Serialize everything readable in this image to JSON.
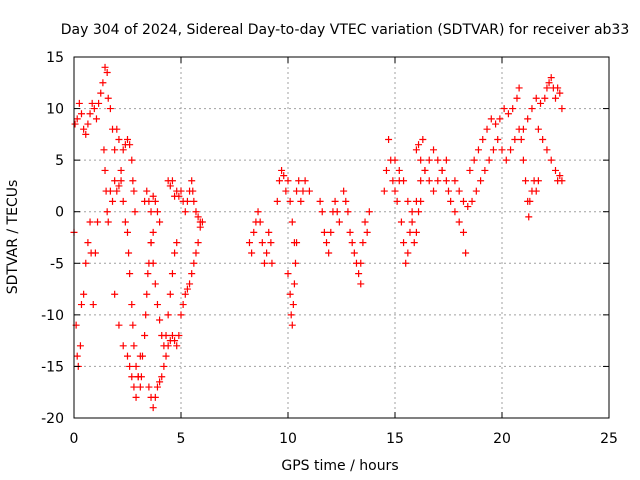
{
  "chart_data": {
    "type": "scatter",
    "title": "Day 304 of 2024, Sidereal Day-to-day VTEC variation (SDTVAR) for receiver ab33",
    "xlabel": "GPS time / hours",
    "ylabel": "SDTVAR / TECUs",
    "xlim": [
      0,
      25
    ],
    "ylim": [
      -20,
      15
    ],
    "xticks": [
      "0",
      "5",
      "10",
      "15",
      "20",
      "25"
    ],
    "yticks": [
      "15",
      "10",
      "5",
      "0",
      "-5",
      "-10",
      "-15",
      "-20"
    ],
    "grid": true,
    "marker": "+",
    "series": [
      {
        "name": "SDTVAR",
        "color": "#ff0000",
        "points": [
          [
            0.0,
            -2
          ],
          [
            0.1,
            -11
          ],
          [
            0.15,
            -14
          ],
          [
            0.2,
            -15
          ],
          [
            0.3,
            -13
          ],
          [
            0.35,
            -9
          ],
          [
            0.45,
            -8
          ],
          [
            0.55,
            -5
          ],
          [
            0.65,
            -3
          ],
          [
            0.75,
            -1
          ],
          [
            0.8,
            -4
          ],
          [
            0.9,
            -9
          ],
          [
            1.0,
            -4
          ],
          [
            1.1,
            -1
          ],
          [
            0.05,
            8.5
          ],
          [
            0.15,
            9
          ],
          [
            0.25,
            10.5
          ],
          [
            0.35,
            9.5
          ],
          [
            0.45,
            8
          ],
          [
            0.55,
            7.5
          ],
          [
            0.65,
            8.5
          ],
          [
            0.75,
            9.5
          ],
          [
            0.85,
            10.5
          ],
          [
            0.95,
            10
          ],
          [
            1.05,
            9
          ],
          [
            1.15,
            10.5
          ],
          [
            1.25,
            11.5
          ],
          [
            1.35,
            12.5
          ],
          [
            1.45,
            14
          ],
          [
            1.55,
            13.5
          ],
          [
            1.6,
            11
          ],
          [
            1.7,
            10
          ],
          [
            1.8,
            8
          ],
          [
            1.9,
            6
          ],
          [
            2.0,
            8
          ],
          [
            2.1,
            7
          ],
          [
            1.4,
            6
          ],
          [
            1.45,
            4
          ],
          [
            1.5,
            2
          ],
          [
            1.55,
            0
          ],
          [
            1.6,
            -1
          ],
          [
            1.7,
            2
          ],
          [
            1.8,
            1
          ],
          [
            1.9,
            3
          ],
          [
            2.0,
            2
          ],
          [
            2.1,
            2.5
          ],
          [
            2.2,
            4
          ],
          [
            2.3,
            6
          ],
          [
            2.4,
            6.5
          ],
          [
            2.5,
            7
          ],
          [
            2.6,
            6.5
          ],
          [
            2.7,
            5
          ],
          [
            2.75,
            3
          ],
          [
            2.8,
            2
          ],
          [
            2.85,
            0
          ],
          [
            2.2,
            3
          ],
          [
            2.3,
            1
          ],
          [
            2.4,
            -1
          ],
          [
            2.5,
            -2
          ],
          [
            2.55,
            -4
          ],
          [
            2.6,
            -6
          ],
          [
            2.7,
            -9
          ],
          [
            2.75,
            -11
          ],
          [
            2.8,
            -13
          ],
          [
            2.9,
            -15
          ],
          [
            3.0,
            -16
          ],
          [
            3.1,
            -17
          ],
          [
            3.15,
            -16
          ],
          [
            3.2,
            -14
          ],
          [
            3.3,
            -12
          ],
          [
            3.35,
            -10
          ],
          [
            3.4,
            -8
          ],
          [
            3.45,
            -6
          ],
          [
            3.5,
            -5
          ],
          [
            3.6,
            -3
          ],
          [
            3.7,
            -2
          ],
          [
            1.9,
            -8
          ],
          [
            2.1,
            -11
          ],
          [
            2.3,
            -13
          ],
          [
            2.5,
            -14
          ],
          [
            2.6,
            -15
          ],
          [
            2.7,
            -16
          ],
          [
            2.8,
            -17
          ],
          [
            2.9,
            -18
          ],
          [
            3.0,
            -16
          ],
          [
            3.1,
            -14
          ],
          [
            3.5,
            -17
          ],
          [
            3.6,
            -18
          ],
          [
            3.7,
            -19
          ],
          [
            3.8,
            -18
          ],
          [
            3.9,
            -17
          ],
          [
            4.0,
            -16.5
          ],
          [
            4.1,
            -16
          ],
          [
            4.2,
            -15
          ],
          [
            4.3,
            -14
          ],
          [
            4.4,
            -13
          ],
          [
            4.5,
            -12.5
          ],
          [
            4.6,
            -12
          ],
          [
            4.7,
            -12.5
          ],
          [
            4.8,
            -13
          ],
          [
            4.9,
            -12
          ],
          [
            5.0,
            -10
          ],
          [
            5.1,
            -9
          ],
          [
            5.2,
            -8
          ],
          [
            5.3,
            -7.5
          ],
          [
            5.4,
            -7
          ],
          [
            5.5,
            -6
          ],
          [
            5.6,
            -5
          ],
          [
            5.7,
            -4
          ],
          [
            5.8,
            -3
          ],
          [
            5.9,
            -1.5
          ],
          [
            6.0,
            -1
          ],
          [
            3.6,
            -3
          ],
          [
            3.7,
            -5
          ],
          [
            3.8,
            -7
          ],
          [
            3.9,
            -9
          ],
          [
            4.0,
            -10.5
          ],
          [
            4.1,
            -12
          ],
          [
            4.2,
            -13
          ],
          [
            4.3,
            -12
          ],
          [
            4.4,
            -10
          ],
          [
            4.5,
            -8
          ],
          [
            4.6,
            -6
          ],
          [
            4.7,
            -4
          ],
          [
            4.8,
            -3
          ],
          [
            3.3,
            1
          ],
          [
            3.4,
            2
          ],
          [
            3.5,
            1
          ],
          [
            3.6,
            0
          ],
          [
            3.7,
            1.5
          ],
          [
            3.8,
            1
          ],
          [
            3.9,
            0
          ],
          [
            4.0,
            -1
          ],
          [
            4.4,
            3
          ],
          [
            4.5,
            2.5
          ],
          [
            4.6,
            3
          ],
          [
            4.7,
            1.5
          ],
          [
            4.8,
            2
          ],
          [
            4.9,
            1.5
          ],
          [
            5.0,
            2
          ],
          [
            5.1,
            1
          ],
          [
            5.2,
            0
          ],
          [
            5.3,
            1
          ],
          [
            5.4,
            2
          ],
          [
            5.5,
            3
          ],
          [
            5.55,
            2
          ],
          [
            5.6,
            1
          ],
          [
            5.7,
            0
          ],
          [
            5.8,
            -0.5
          ],
          [
            5.9,
            -1
          ],
          [
            8.2,
            -3
          ],
          [
            8.3,
            -4
          ],
          [
            8.4,
            -2
          ],
          [
            8.5,
            -1
          ],
          [
            8.6,
            0
          ],
          [
            8.7,
            -1
          ],
          [
            8.8,
            -3
          ],
          [
            8.9,
            -5
          ],
          [
            9.0,
            -4
          ],
          [
            9.1,
            -2
          ],
          [
            9.2,
            -3
          ],
          [
            9.25,
            -5
          ],
          [
            9.5,
            1
          ],
          [
            9.6,
            3
          ],
          [
            9.7,
            4
          ],
          [
            9.8,
            3.5
          ],
          [
            9.9,
            2
          ],
          [
            10.0,
            3
          ],
          [
            10.1,
            1
          ],
          [
            10.2,
            -1
          ],
          [
            10.3,
            -3
          ],
          [
            10.4,
            2
          ],
          [
            10.5,
            3
          ],
          [
            10.6,
            1
          ],
          [
            10.7,
            2
          ],
          [
            10.8,
            3
          ],
          [
            11.0,
            2
          ],
          [
            10.0,
            -6
          ],
          [
            10.1,
            -8
          ],
          [
            10.15,
            -10
          ],
          [
            10.2,
            -11
          ],
          [
            10.25,
            -9
          ],
          [
            10.3,
            -7
          ],
          [
            10.35,
            -5
          ],
          [
            10.4,
            -3
          ],
          [
            11.5,
            1
          ],
          [
            11.6,
            0
          ],
          [
            11.7,
            -2
          ],
          [
            11.8,
            -3
          ],
          [
            11.9,
            -4
          ],
          [
            12.0,
            -2
          ],
          [
            12.1,
            0
          ],
          [
            12.2,
            1
          ],
          [
            12.3,
            0
          ],
          [
            12.4,
            -1
          ],
          [
            12.6,
            2
          ],
          [
            12.7,
            1
          ],
          [
            12.8,
            0
          ],
          [
            12.9,
            -2
          ],
          [
            13.0,
            -3
          ],
          [
            13.1,
            -4
          ],
          [
            13.2,
            -5
          ],
          [
            13.3,
            -6
          ],
          [
            13.4,
            -5
          ],
          [
            13.5,
            -3
          ],
          [
            13.6,
            -1
          ],
          [
            13.7,
            -2
          ],
          [
            13.8,
            0
          ],
          [
            13.4,
            -7
          ],
          [
            14.5,
            2
          ],
          [
            14.6,
            4
          ],
          [
            14.7,
            7
          ],
          [
            14.8,
            5
          ],
          [
            14.9,
            3
          ],
          [
            15.0,
            5
          ],
          [
            15.1,
            1
          ],
          [
            15.2,
            3
          ],
          [
            15.3,
            -1
          ],
          [
            15.4,
            -3
          ],
          [
            15.5,
            -5
          ],
          [
            15.6,
            -4
          ],
          [
            15.7,
            -2
          ],
          [
            15.8,
            -1
          ],
          [
            15.9,
            -3
          ],
          [
            16.0,
            -2
          ],
          [
            16.1,
            0
          ],
          [
            16.2,
            1
          ],
          [
            15.0,
            2
          ],
          [
            15.2,
            4
          ],
          [
            15.4,
            3
          ],
          [
            15.6,
            1
          ],
          [
            15.8,
            0
          ],
          [
            16.0,
            1
          ],
          [
            16.2,
            3
          ],
          [
            16.4,
            4
          ],
          [
            16.6,
            5
          ],
          [
            16.8,
            6
          ],
          [
            17.0,
            5
          ],
          [
            17.2,
            4
          ],
          [
            17.4,
            3
          ],
          [
            17.5,
            2
          ],
          [
            17.6,
            1
          ],
          [
            17.8,
            0
          ],
          [
            18.0,
            -1
          ],
          [
            18.2,
            -2
          ],
          [
            18.3,
            -4
          ],
          [
            16.0,
            6
          ],
          [
            16.2,
            5
          ],
          [
            16.4,
            4
          ],
          [
            16.6,
            3
          ],
          [
            16.8,
            2
          ],
          [
            17.0,
            3
          ],
          [
            17.2,
            4
          ],
          [
            17.4,
            5
          ],
          [
            16.3,
            7
          ],
          [
            16.1,
            6.5
          ],
          [
            17.8,
            3
          ],
          [
            18.0,
            2
          ],
          [
            18.2,
            1
          ],
          [
            18.4,
            0.5
          ],
          [
            18.6,
            1
          ],
          [
            18.8,
            2
          ],
          [
            19.0,
            3
          ],
          [
            19.2,
            4
          ],
          [
            19.4,
            5
          ],
          [
            19.6,
            6
          ],
          [
            19.8,
            7
          ],
          [
            20.0,
            6
          ],
          [
            20.2,
            5
          ],
          [
            20.4,
            6
          ],
          [
            20.6,
            7
          ],
          [
            20.8,
            8
          ],
          [
            18.5,
            4
          ],
          [
            18.7,
            5
          ],
          [
            18.9,
            6
          ],
          [
            19.1,
            7
          ],
          [
            19.3,
            8
          ],
          [
            19.5,
            9
          ],
          [
            19.7,
            8.5
          ],
          [
            19.9,
            9
          ],
          [
            20.1,
            10
          ],
          [
            20.3,
            9.5
          ],
          [
            20.5,
            10
          ],
          [
            20.7,
            11
          ],
          [
            20.8,
            12
          ],
          [
            20.9,
            7
          ],
          [
            21.0,
            5
          ],
          [
            21.1,
            3
          ],
          [
            21.2,
            1
          ],
          [
            21.25,
            -0.5
          ],
          [
            21.3,
            1
          ],
          [
            21.4,
            2
          ],
          [
            21.5,
            3
          ],
          [
            21.6,
            2
          ],
          [
            21.7,
            3
          ],
          [
            21.0,
            8
          ],
          [
            21.2,
            9
          ],
          [
            21.4,
            10
          ],
          [
            21.6,
            11
          ],
          [
            21.8,
            10.5
          ],
          [
            22.0,
            11
          ],
          [
            22.1,
            12
          ],
          [
            22.2,
            12.5
          ],
          [
            22.3,
            13
          ],
          [
            22.4,
            12
          ],
          [
            22.5,
            11
          ],
          [
            22.6,
            12
          ],
          [
            22.7,
            11.5
          ],
          [
            22.8,
            10
          ],
          [
            21.7,
            8
          ],
          [
            21.9,
            7
          ],
          [
            22.1,
            6
          ],
          [
            22.3,
            5
          ],
          [
            22.5,
            4
          ],
          [
            22.6,
            3
          ],
          [
            22.7,
            3.5
          ],
          [
            22.8,
            3
          ]
        ]
      }
    ]
  }
}
